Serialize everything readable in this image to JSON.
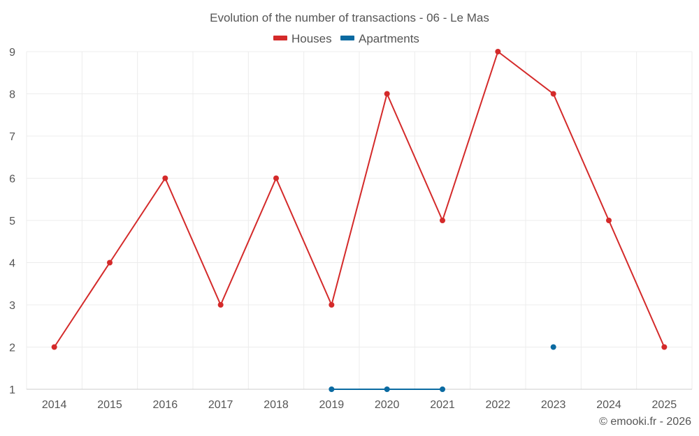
{
  "chart_data": {
    "type": "line",
    "title": "Evolution of the number of transactions - 06 - Le Mas",
    "categories": [
      "2014",
      "2015",
      "2016",
      "2017",
      "2018",
      "2019",
      "2020",
      "2021",
      "2022",
      "2023",
      "2024",
      "2025"
    ],
    "series": [
      {
        "name": "Houses",
        "color": "#d42a2a",
        "values": [
          2,
          4,
          6,
          3,
          6,
          3,
          8,
          5,
          9,
          8,
          5,
          2
        ]
      },
      {
        "name": "Apartments",
        "color": "#0a6aa1",
        "values": [
          null,
          null,
          null,
          null,
          null,
          1,
          1,
          1,
          null,
          2,
          null,
          null
        ]
      }
    ],
    "ylim": [
      1,
      9
    ],
    "yticks": [
      1,
      2,
      3,
      4,
      5,
      6,
      7,
      8,
      9
    ],
    "xlabel": "",
    "ylabel": "",
    "grid": true,
    "legend": "top-center"
  },
  "credit": "© emooki.fr - 2026"
}
